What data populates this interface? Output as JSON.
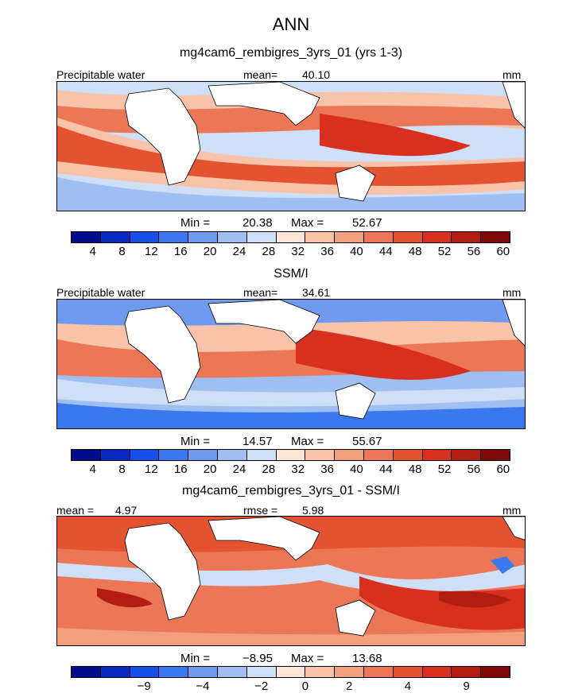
{
  "season": "ANN",
  "colors": {
    "scale": [
      "#000c8a",
      "#0a28c2",
      "#1650e8",
      "#3a78f0",
      "#6f9af0",
      "#9fbef2",
      "#cfe0f6",
      "#fbe5d6",
      "#f8c3a9",
      "#f29f7e",
      "#ec7757",
      "#e4532f",
      "#d7301f",
      "#b11d10",
      "#7e0a08"
    ],
    "land": "#ffffff",
    "coast": "#000000"
  },
  "chart_data": [
    {
      "type": "heatmap",
      "title": "mg4cam6_rembigres_3yrs_01 (yrs 1-3)",
      "variable": "Precipitable water",
      "mean_label": "mean=",
      "mean": "40.10",
      "units": "mm",
      "min_label": "Min =",
      "min": "20.38",
      "max_label": "Max =",
      "max": "52.67",
      "colorbar_ticks": [
        "4",
        "8",
        "12",
        "16",
        "20",
        "24",
        "28",
        "32",
        "36",
        "40",
        "44",
        "48",
        "52",
        "56",
        "60"
      ]
    },
    {
      "type": "heatmap",
      "title": "SSM/I",
      "variable": "Precipitable water",
      "mean_label": "mean=",
      "mean": "34.61",
      "units": "mm",
      "min_label": "Min =",
      "min": "14.57",
      "max_label": "Max =",
      "max": "55.67",
      "colorbar_ticks": [
        "4",
        "8",
        "12",
        "16",
        "20",
        "24",
        "28",
        "32",
        "36",
        "40",
        "44",
        "48",
        "52",
        "56",
        "60"
      ]
    },
    {
      "type": "heatmap",
      "title": "mg4cam6_rembigres_3yrs_01 - SSM/I",
      "mean_label": "mean =",
      "mean": "4.97",
      "rmse_label": "rmse =",
      "rmse": "5.98",
      "units": "mm",
      "min_label": "Min =",
      "min": "−8.95",
      "max_label": "Max =",
      "max": "13.68",
      "colorbar_ticks": [
        "−9",
        "−4",
        "−2",
        "0",
        "2",
        "4",
        "9"
      ]
    }
  ]
}
